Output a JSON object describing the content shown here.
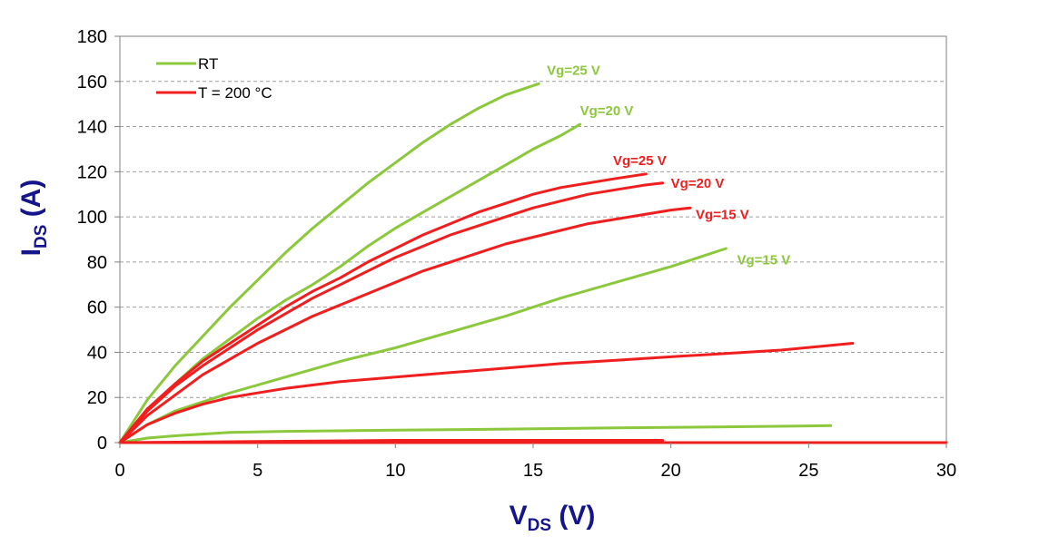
{
  "chart_data": {
    "type": "line",
    "xlabel_main": "V",
    "xlabel_sub": "DS",
    "xlabel_unit": " (V)",
    "ylabel_main": "I",
    "ylabel_sub": "DS",
    "ylabel_unit": "  (A)",
    "xlim": [
      0,
      30
    ],
    "ylim": [
      0,
      180
    ],
    "xticks": [
      0,
      5,
      10,
      15,
      20,
      25,
      30
    ],
    "yticks": [
      0,
      20,
      40,
      60,
      80,
      100,
      120,
      140,
      160,
      180
    ],
    "grid": "horizontal dashed",
    "legend_position": "top-left",
    "legend": [
      {
        "label": "RT",
        "color": "#8cc83c"
      },
      {
        "label": "T = 200 °C",
        "color": "#f01e1e"
      }
    ],
    "colors": {
      "rt": "#8cc83c",
      "ht": "#f01e1e",
      "axis_title": "#14148c"
    },
    "series": [
      {
        "group": "RT",
        "color": "#8cc83c",
        "x": [
          0,
          1,
          2,
          3,
          4,
          5,
          6,
          7,
          8,
          9,
          10,
          11,
          12,
          13,
          14,
          15.2
        ],
        "y": [
          0,
          19,
          34,
          47,
          60,
          72,
          84,
          95,
          105,
          115,
          124,
          133,
          141,
          148,
          154,
          159
        ]
      },
      {
        "group": "RT",
        "color": "#8cc83c",
        "x": [
          0,
          1,
          2,
          3,
          4,
          5,
          6,
          7,
          8,
          9,
          10,
          11,
          12,
          13,
          14,
          15,
          16,
          16.7
        ],
        "y": [
          0,
          14,
          26,
          37,
          46,
          55,
          63,
          70,
          78,
          87,
          95,
          102,
          109,
          116,
          123,
          130,
          136,
          141
        ]
      },
      {
        "group": "RT",
        "color": "#8cc83c",
        "x": [
          0,
          1,
          2,
          4,
          6,
          8,
          10,
          12,
          14,
          16,
          18,
          20,
          22
        ],
        "y": [
          0,
          8,
          14,
          22,
          29,
          36,
          42,
          49,
          56,
          64,
          71,
          78,
          86
        ]
      },
      {
        "group": "RT",
        "color": "#8cc83c",
        "x": [
          0,
          1,
          2,
          4,
          6,
          10,
          14,
          18,
          22,
          25.8
        ],
        "y": [
          0,
          2,
          3,
          4.5,
          5,
          5.5,
          6,
          6.5,
          7,
          7.5
        ]
      },
      {
        "group": "T = 200 °C",
        "color": "#f01e1e",
        "x": [
          0,
          1,
          2,
          3,
          4,
          5,
          6,
          7,
          8,
          9,
          10,
          11,
          12,
          13,
          14,
          15,
          16,
          17,
          18,
          19.1
        ],
        "y": [
          0,
          15,
          26,
          36,
          44,
          52,
          60,
          67,
          73,
          80,
          86,
          92,
          97,
          102,
          106,
          110,
          113,
          115,
          117,
          119
        ]
      },
      {
        "group": "T = 200 °C",
        "color": "#f01e1e",
        "x": [
          0,
          1,
          2,
          3,
          4,
          5,
          6,
          7,
          8,
          9,
          10,
          11,
          12,
          13,
          14,
          15,
          16,
          17,
          18,
          19,
          19.7
        ],
        "y": [
          0,
          14,
          25,
          34,
          42,
          50,
          57,
          64,
          70,
          76,
          82,
          87,
          92,
          96,
          100,
          104,
          107,
          110,
          112,
          114,
          115
        ]
      },
      {
        "group": "T = 200 °C",
        "color": "#f01e1e",
        "x": [
          0,
          1,
          2,
          3,
          4,
          5,
          6,
          7,
          8,
          9,
          10,
          11,
          12,
          13,
          14,
          15,
          16,
          17,
          18,
          19,
          20,
          20.7
        ],
        "y": [
          0,
          12,
          21,
          30,
          37,
          44,
          50,
          56,
          61,
          66,
          71,
          76,
          80,
          84,
          88,
          91,
          94,
          97,
          99,
          101,
          103,
          104
        ]
      },
      {
        "group": "T = 200 °C",
        "color": "#f01e1e",
        "x": [
          0,
          1,
          2,
          3,
          4,
          5,
          6,
          8,
          10,
          12,
          14,
          16,
          18,
          20,
          22,
          24,
          26.6
        ],
        "y": [
          0,
          8,
          13,
          17,
          20,
          22,
          24,
          27,
          29,
          31,
          33,
          35,
          36.5,
          38,
          39.5,
          41,
          44
        ]
      },
      {
        "group": "T = 200 °C",
        "color": "#f01e1e",
        "x": [
          0,
          5,
          10,
          15,
          19.7
        ],
        "y": [
          0,
          0.5,
          1,
          1,
          1
        ]
      },
      {
        "group": "T = 200 °C",
        "color": "#f01e1e",
        "x": [
          0,
          30
        ],
        "y": [
          0,
          0
        ]
      }
    ],
    "annotations": [
      {
        "text": "Vg=25 V",
        "color": "#8cc83c",
        "x": 15.5,
        "y": 163
      },
      {
        "text": "Vg=20 V",
        "color": "#8cc83c",
        "x": 16.7,
        "y": 145
      },
      {
        "text": "Vg=25 V",
        "color": "#f01e1e",
        "x": 17.9,
        "y": 123
      },
      {
        "text": "Vg=20 V",
        "color": "#f01e1e",
        "x": 20.0,
        "y": 113
      },
      {
        "text": "Vg=15 V",
        "color": "#f01e1e",
        "x": 20.9,
        "y": 99
      },
      {
        "text": "Vg=15 V",
        "color": "#8cc83c",
        "x": 22.4,
        "y": 79
      }
    ]
  }
}
